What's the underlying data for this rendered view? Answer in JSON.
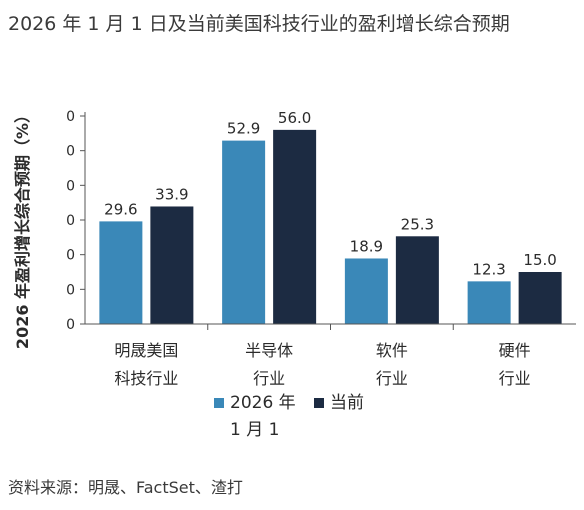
{
  "title": "2026 年 1 月 1 日及当前美国科技行业的盈利增长综合预期",
  "source": "资料来源：明晟、FactSet、渣打",
  "colors": {
    "series1": "#3a88b8",
    "series2": "#1c2b42",
    "axis": "#555555"
  },
  "chart_data": {
    "type": "bar",
    "ylabel": "2026 年盈利增长综合预期（%）",
    "ylim": [
      0,
      60
    ],
    "yticks": [
      "0",
      "0",
      "0",
      "0",
      "0",
      "0",
      "0"
    ],
    "categories": [
      [
        "明晟美国",
        "科技行业"
      ],
      [
        "半导体",
        "行业"
      ],
      [
        "软件",
        "行业"
      ],
      [
        "硬件",
        "行业"
      ]
    ],
    "series": [
      {
        "name": "2026 年 1 月 1",
        "values": [
          29.6,
          52.9,
          18.9,
          12.3
        ],
        "labels": [
          "29.6",
          "52.9",
          "18.9",
          "12.3"
        ]
      },
      {
        "name": "当前",
        "values": [
          33.9,
          56.0,
          25.3,
          15.0
        ],
        "labels": [
          "33.9",
          "56.0",
          "25.3",
          "15.0"
        ]
      }
    ],
    "legend": {
      "entries": [
        "2026 年 1 月 1",
        "当前"
      ],
      "placement": "bottom"
    },
    "grid": false
  }
}
